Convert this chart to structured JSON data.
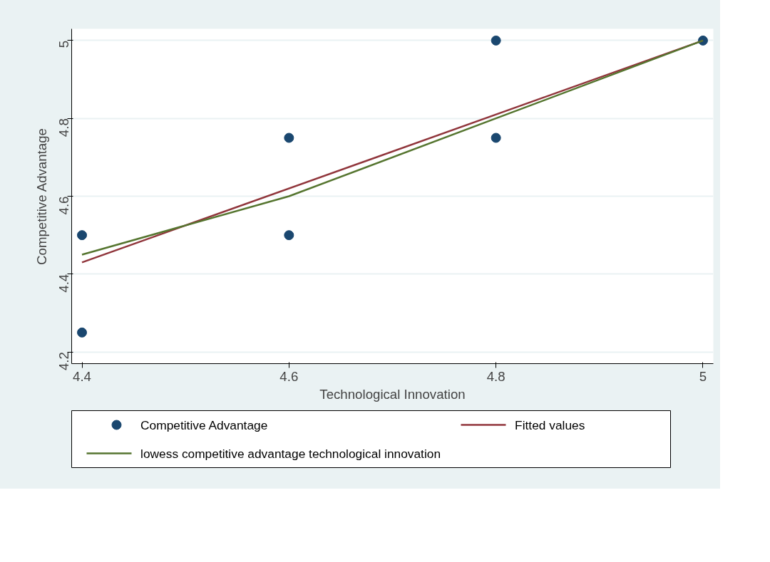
{
  "chart_data": {
    "type": "scatter",
    "xlabel": "Technological Innovation",
    "ylabel": "Competitive Advantage",
    "xlim": [
      4.39,
      5.01
    ],
    "ylim": [
      4.17,
      5.03
    ],
    "xticks": [
      4.4,
      4.6,
      4.8,
      5
    ],
    "yticks": [
      4.2,
      4.4,
      4.6,
      4.8,
      5
    ],
    "grid": "y",
    "legend": "bottom",
    "marker": "circle",
    "series": [
      {
        "name": "Competitive Advantage",
        "color": "#1a476f",
        "x": [
          4.4,
          4.4,
          4.6,
          4.6,
          4.8,
          4.8,
          5
        ],
        "values": [
          4.5,
          4.25,
          4.75,
          4.5,
          5,
          4.75,
          5
        ]
      },
      {
        "name": "Fitted values",
        "type": "line",
        "marker": "none",
        "color": "#90353b",
        "x": [
          4.4,
          5
        ],
        "values": [
          4.43,
          5
        ]
      },
      {
        "name": "lowess competitive advantage  technological innovation",
        "type": "line",
        "marker": "none",
        "color": "#55752f",
        "x": [
          4.4,
          4.6,
          4.8,
          5
        ],
        "values": [
          4.45,
          4.6,
          4.8,
          5
        ]
      }
    ]
  }
}
